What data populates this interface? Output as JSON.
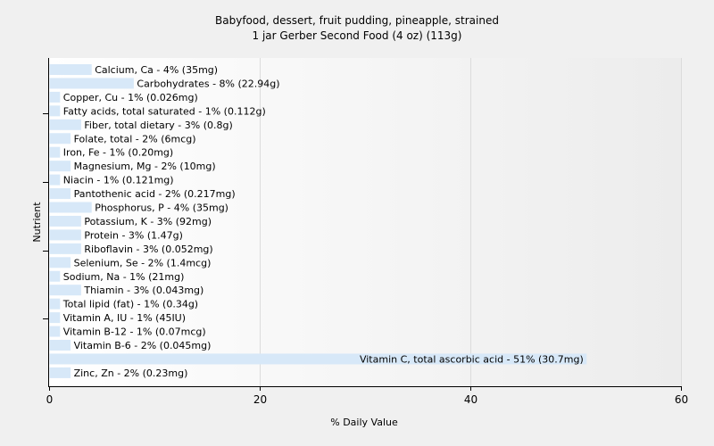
{
  "chart_data": {
    "type": "bar",
    "orientation": "horizontal",
    "title": "Babyfood, dessert, fruit pudding, pineapple, strained",
    "subtitle": "1 jar Gerber Second Food (4 oz) (113g)",
    "xlabel": "% Daily Value",
    "ylabel": "Nutrient",
    "xlim": [
      0,
      60
    ],
    "xticks": [
      0,
      20,
      40,
      60
    ],
    "grid": true,
    "bar_color": "#d7e8f8",
    "categories": [
      "Calcium, Ca",
      "Carbohydrates",
      "Copper, Cu",
      "Fatty acids, total saturated",
      "Fiber, total dietary",
      "Folate, total",
      "Iron, Fe",
      "Magnesium, Mg",
      "Niacin",
      "Pantothenic acid",
      "Phosphorus, P",
      "Potassium, K",
      "Protein",
      "Riboflavin",
      "Selenium, Se",
      "Sodium, Na",
      "Thiamin",
      "Total lipid (fat)",
      "Vitamin A, IU",
      "Vitamin B-12",
      "Vitamin B-6",
      "Vitamin C, total ascorbic acid",
      "Zinc, Zn"
    ],
    "values": [
      4,
      8,
      1,
      1,
      3,
      2,
      1,
      2,
      1,
      2,
      4,
      3,
      3,
      3,
      2,
      1,
      3,
      1,
      1,
      1,
      2,
      51,
      2
    ],
    "labels": [
      "Calcium, Ca - 4% (35mg)",
      "Carbohydrates - 8% (22.94g)",
      "Copper, Cu - 1% (0.026mg)",
      "Fatty acids, total saturated - 1% (0.112g)",
      "Fiber, total dietary - 3% (0.8g)",
      "Folate, total - 2% (6mcg)",
      "Iron, Fe - 1% (0.20mg)",
      "Magnesium, Mg - 2% (10mg)",
      "Niacin - 1% (0.121mg)",
      "Pantothenic acid - 2% (0.217mg)",
      "Phosphorus, P - 4% (35mg)",
      "Potassium, K - 3% (92mg)",
      "Protein - 3% (1.47g)",
      "Riboflavin - 3% (0.052mg)",
      "Selenium, Se - 2% (1.4mcg)",
      "Sodium, Na - 1% (21mg)",
      "Thiamin - 3% (0.043mg)",
      "Total lipid (fat) - 1% (0.34g)",
      "Vitamin A, IU - 1% (45IU)",
      "Vitamin B-12 - 1% (0.07mcg)",
      "Vitamin B-6 - 2% (0.045mg)",
      "Vitamin C, total ascorbic acid - 51% (30.7mg)",
      "Zinc, Zn - 2% (0.23mg)"
    ]
  }
}
